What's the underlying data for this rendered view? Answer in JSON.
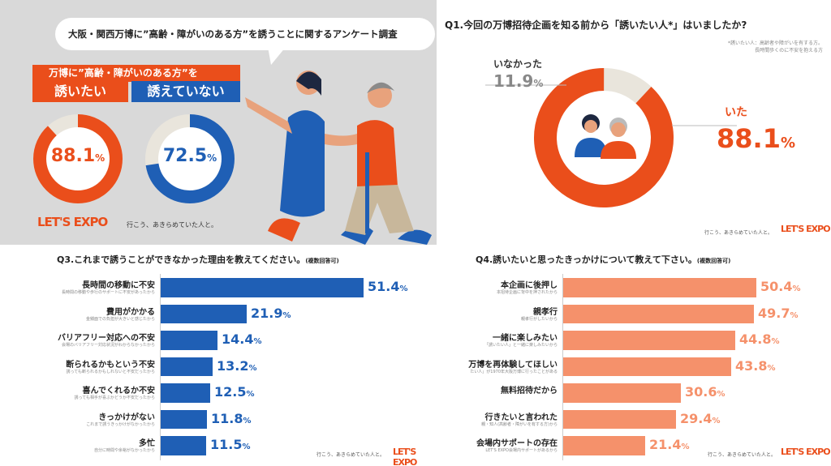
{
  "colors": {
    "orange": "#ea4e1b",
    "blue": "#1f5fb5",
    "salmon": "#f5916b",
    "track": "#e9e5dc",
    "grey_bg": "#d9d9d9"
  },
  "panel1": {
    "headline": "大阪・関西万博に”高齢・障がいのある方”を誘うことに関するアンケート調査",
    "subject_banner": "万博に”高齢・障がいのある方”を",
    "want_label": "誘いたい",
    "cannot_label": "誘えていない",
    "want_value": "88.1",
    "cannot_value": "72.5",
    "pct": "%",
    "logo": "LET'S EXPO",
    "tagline": "行こう、あきらめていた人と。"
  },
  "chart_data": [
    {
      "type": "pie",
      "title": "Q1.今回の万博招待企画を知る前から「誘いたい人*」はいましたか?",
      "note": [
        "*誘いたい人：高齢者や障がいを有する方。",
        "長時間歩くのに不安を抱える方"
      ],
      "categories": [
        "いた",
        "いなかった"
      ],
      "values": [
        88.1,
        11.9
      ]
    },
    {
      "type": "bar",
      "title": "Q3.これまで誘うことができなかった理由を教えてください。",
      "title_suffix": "(複数回答可)",
      "categories": [
        "長時間の移動に不安",
        "費用がかかる",
        "バリアフリー対応への不安",
        "断られるかもという不安",
        "喜んでくれるか不安",
        "きっかけがない",
        "多忙"
      ],
      "subtitles": [
        "長時間の移動や歩行のサポートに不安があったから",
        "金銭面での負担が大きいと感じたから",
        "会場のバリアフリー対応状況がわからなかったから",
        "誘っても断られるかもしれないと不安だったから",
        "誘っても相手が喜ぶかどうか不安だったから",
        "これまで誘うきっかけがなかったから",
        "自分に時間や余裕がなかったから"
      ],
      "values": [
        51.4,
        21.9,
        14.4,
        13.2,
        12.5,
        11.8,
        11.5
      ],
      "xlim": [
        0,
        56
      ]
    },
    {
      "type": "bar",
      "title": "Q4.誘いたいと思ったきっかけについて教えて下さい。",
      "title_suffix": "(複数回答可)",
      "categories": [
        "本企画に後押し",
        "親孝行",
        "一緒に楽しみたい",
        "万博を再体験してほしい",
        "無料招待だから",
        "行きたいと言われた",
        "会場内サポートの存在"
      ],
      "subtitles": [
        "本招待企画に背中を押されたから",
        "親孝行がしたいから",
        "「誘いたい人」と一緒に楽しみたいから",
        "たい人」が1970年大阪万博に行ったことがある",
        "",
        "親・知人(高齢者・障がいを有する方)から",
        "LET'S EXPO会場内サポートがあるから"
      ],
      "values": [
        50.4,
        49.7,
        44.8,
        43.8,
        30.6,
        29.4,
        21.4
      ],
      "xlim": [
        0,
        55
      ]
    }
  ],
  "pct": "%",
  "footer_tagline": "行こう、あきらめていた人と。",
  "footer_logo": "LET'S EXPO"
}
